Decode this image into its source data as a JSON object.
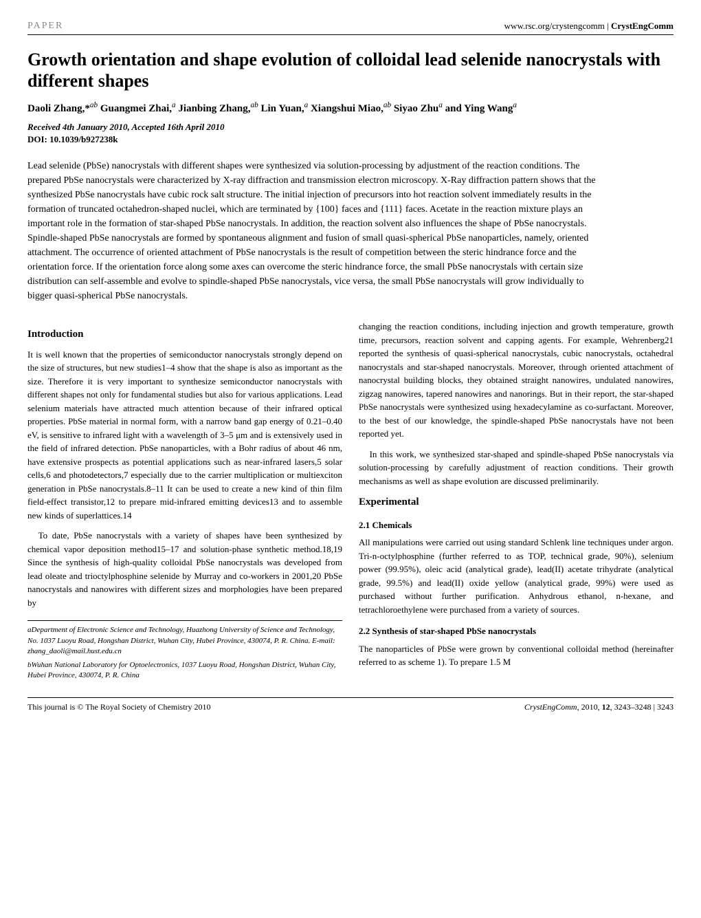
{
  "header": {
    "paper_label": "PAPER",
    "journal_url": "www.rsc.org/crystengcomm",
    "journal_name": "CrystEngComm"
  },
  "title": "Growth orientation and shape evolution of colloidal lead selenide nanocrystals with different shapes",
  "authors_html": "Daoli Zhang,*<sup>ab</sup> Guangmei Zhai,<sup>a</sup> Jianbing Zhang,<sup>ab</sup> Lin Yuan,<sup>a</sup> Xiangshui Miao,<sup>ab</sup> Siyao Zhu<sup>a</sup> and Ying Wang<sup>a</sup>",
  "received": "Received 4th January 2010, Accepted 16th April 2010",
  "doi": "DOI: 10.1039/b927238k",
  "abstract": "Lead selenide (PbSe) nanocrystals with different shapes were synthesized via solution-processing by adjustment of the reaction conditions. The prepared PbSe nanocrystals were characterized by X-ray diffraction and transmission electron microscopy. X-Ray diffraction pattern shows that the synthesized PbSe nanocrystals have cubic rock salt structure. The initial injection of precursors into hot reaction solvent immediately results in the formation of truncated octahedron-shaped nuclei, which are terminated by {100} faces and {111} faces. Acetate in the reaction mixture plays an important role in the formation of star-shaped PbSe nanocrystals. In addition, the reaction solvent also influences the shape of PbSe nanocrystals. Spindle-shaped PbSe nanocrystals are formed by spontaneous alignment and fusion of small quasi-spherical PbSe nanoparticles, namely, oriented attachment. The occurrence of oriented attachment of PbSe nanocrystals is the result of competition between the steric hindrance force and the orientation force. If the orientation force along some axes can overcome the steric hindrance force, the small PbSe nanocrystals with certain size distribution can self-assemble and evolve to spindle-shaped PbSe nanocrystals, vice versa, the small PbSe nanocrystals will grow individually to bigger quasi-spherical PbSe nanocrystals.",
  "sections": {
    "introduction": {
      "heading": "Introduction",
      "para1": "It is well known that the properties of semiconductor nanocrystals strongly depend on the size of structures, but new studies1–4 show that the shape is also as important as the size. Therefore it is very important to synthesize semiconductor nanocrystals with different shapes not only for fundamental studies but also for various applications. Lead selenium materials have attracted much attention because of their infrared optical properties. PbSe material in normal form, with a narrow band gap energy of 0.21–0.40 eV, is sensitive to infrared light with a wavelength of 3–5 μm and is extensively used in the field of infrared detection. PbSe nanoparticles, with a Bohr radius of about 46 nm, have extensive prospects as potential applications such as near-infrared lasers,5 solar cells,6 and photodetectors,7 especially due to the carrier multiplication or multiexciton generation in PbSe nanocrystals.8–11 It can be used to create a new kind of thin film field-effect transistor,12 to prepare mid-infrared emitting devices13 and to assemble new kinds of superlattices.14",
      "para2": "To date, PbSe nanocrystals with a variety of shapes have been synthesized by chemical vapor deposition method15–17 and solution-phase synthetic method.18,19 Since the synthesis of high-quality colloidal PbSe nanocrystals was developed from lead oleate and trioctylphosphine selenide by Murray and co-workers in 2001,20 PbSe nanocrystals and nanowires with different sizes and morphologies have been prepared by",
      "para3": "changing the reaction conditions, including injection and growth temperature, growth time, precursors, reaction solvent and capping agents. For example, Wehrenberg21 reported the synthesis of quasi-spherical nanocrystals, cubic nanocrystals, octahedral nanocrystals and star-shaped nanocrystals. Moreover, through oriented attachment of nanocrystal building blocks, they obtained straight nanowires, undulated nanowires, zigzag nanowires, tapered nanowires and nanorings. But in their report, the star-shaped PbSe nanocrystals were synthesized using hexadecylamine as co-surfactant. Moreover, to the best of our knowledge, the spindle-shaped PbSe nanocrystals have not been reported yet.",
      "para4": "In this work, we synthesized star-shaped and spindle-shaped PbSe nanocrystals via solution-processing by carefully adjustment of reaction conditions. Their growth mechanisms as well as shape evolution are discussed preliminarily."
    },
    "experimental": {
      "heading": "Experimental",
      "chemicals": {
        "heading": "2.1   Chemicals",
        "para": "All manipulations were carried out using standard Schlenk line techniques under argon. Tri-n-octylphosphine (further referred to as TOP, technical grade, 90%), selenium power (99.95%), oleic acid (analytical grade), lead(II) acetate trihydrate (analytical grade, 99.5%) and lead(II) oxide yellow (analytical grade, 99%) were used as purchased without further purification. Anhydrous ethanol, n-hexane, and tetrachloroethylene were purchased from a variety of sources."
      },
      "synthesis": {
        "heading": "2.2   Synthesis of star-shaped PbSe nanocrystals",
        "para": "The nanoparticles of PbSe were grown by conventional colloidal method (hereinafter referred to as scheme 1). To prepare 1.5 M"
      }
    }
  },
  "affiliations": {
    "a": "aDepartment of Electronic Science and Technology, Huazhong University of Science and Technology, No. 1037 Luoyu Road, Hongshan District, Wuhan City, Hubei Province, 430074, P. R. China. E-mail: zhang_daoli@mail.hust.edu.cn",
    "b": "bWuhan National Laboratory for Optoelectronics, 1037 Luoyu Road, Hongshan District, Wuhan City, Hubei Province, 430074, P. R. China"
  },
  "footer": {
    "left": "This journal is © The Royal Society of Chemistry 2010",
    "right": "CrystEngComm, 2010, 12, 3243–3248 | 3243"
  }
}
